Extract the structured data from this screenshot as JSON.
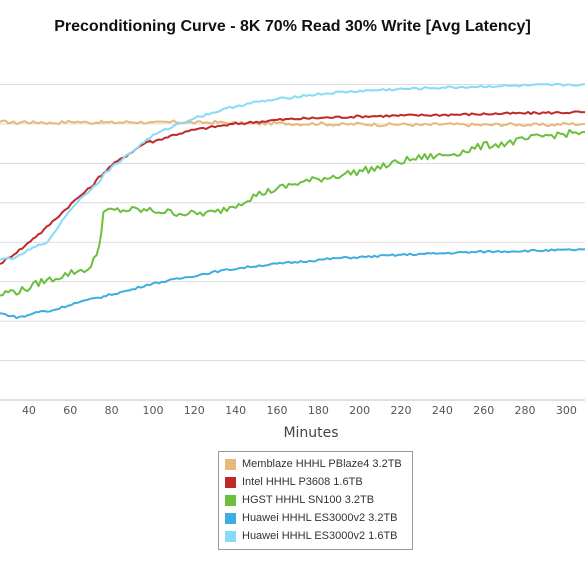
{
  "chart_data": {
    "type": "line",
    "title": "Preconditioning Curve - 8K 70% Read 30% Write [Avg Latency]",
    "xlabel": "Minutes",
    "ylabel": "",
    "x_ticks": [
      40,
      60,
      80,
      100,
      120,
      140,
      160,
      180,
      200,
      220,
      240,
      260,
      280,
      300
    ],
    "xlim": [
      26,
      309
    ],
    "ylim": [
      0,
      9
    ],
    "y_gridlines": [
      1,
      2,
      3,
      4,
      5,
      6,
      7,
      8
    ],
    "grid": true,
    "legend_position": "bottom",
    "x": [
      26,
      30,
      34,
      38,
      42,
      46,
      50,
      56,
      62,
      70,
      74,
      76,
      80,
      90,
      97,
      100,
      110,
      120,
      130,
      140,
      150,
      160,
      170,
      180,
      190,
      200,
      210,
      220,
      230,
      240,
      250,
      260,
      270,
      280,
      290,
      300,
      309
    ],
    "series": [
      {
        "name": "Memblaze HHHL PBlaze4 3.2TB",
        "color": "#e8b87a",
        "values": [
          7.05,
          7.05,
          7.02,
          7.06,
          7.03,
          7.05,
          7.02,
          7.04,
          7.06,
          7.03,
          7.05,
          7.04,
          7.03,
          7.05,
          7.04,
          7.02,
          7.05,
          7.03,
          7.04,
          7.02,
          7.0,
          7.02,
          7.0,
          7.01,
          6.98,
          7.0,
          6.98,
          6.99,
          6.97,
          6.99,
          6.98,
          6.97,
          6.99,
          6.98,
          6.97,
          7.0,
          7.0
        ]
      },
      {
        "name": "Intel HHHL P3608 1.6TB",
        "color": "#c0282a",
        "values": [
          3.45,
          3.6,
          3.75,
          3.9,
          4.1,
          4.25,
          4.45,
          4.75,
          5.05,
          5.4,
          5.65,
          5.75,
          5.95,
          6.3,
          6.55,
          6.55,
          6.72,
          6.85,
          6.93,
          7.0,
          7.05,
          7.1,
          7.13,
          7.15,
          7.17,
          7.19,
          7.2,
          7.21,
          7.22,
          7.23,
          7.24,
          7.25,
          7.26,
          7.27,
          7.28,
          7.29,
          7.3
        ]
      },
      {
        "name": "HGST HHHL SN100 3.2TB",
        "color": "#6cbf3c",
        "values": [
          2.65,
          2.75,
          2.75,
          2.8,
          2.9,
          3.0,
          3.05,
          3.15,
          3.25,
          3.35,
          3.9,
          4.75,
          4.8,
          4.82,
          4.8,
          4.8,
          4.75,
          4.72,
          4.75,
          4.95,
          5.2,
          5.35,
          5.5,
          5.6,
          5.7,
          5.8,
          5.9,
          6.05,
          6.15,
          6.2,
          6.3,
          6.45,
          6.5,
          6.6,
          6.7,
          6.75,
          6.8
        ]
      },
      {
        "name": "Huawei HHHL ES3000v2 3.2TB",
        "color": "#3eaee0",
        "values": [
          2.2,
          2.15,
          2.1,
          2.12,
          2.2,
          2.25,
          2.25,
          2.35,
          2.45,
          2.55,
          2.6,
          2.62,
          2.68,
          2.8,
          2.92,
          2.95,
          3.05,
          3.15,
          3.25,
          3.33,
          3.4,
          3.45,
          3.5,
          3.55,
          3.6,
          3.62,
          3.65,
          3.68,
          3.7,
          3.72,
          3.74,
          3.76,
          3.77,
          3.78,
          3.79,
          3.8,
          3.82
        ]
      },
      {
        "name": "Huawei HHHL ES3000v2 1.6TB",
        "color": "#86dbf5",
        "values": [
          3.55,
          3.6,
          3.6,
          3.75,
          3.85,
          3.95,
          4.05,
          4.55,
          4.95,
          5.35,
          5.55,
          5.7,
          5.9,
          6.3,
          6.6,
          6.7,
          6.95,
          7.15,
          7.3,
          7.45,
          7.55,
          7.62,
          7.7,
          7.75,
          7.8,
          7.83,
          7.86,
          7.88,
          7.9,
          7.92,
          7.93,
          7.95,
          7.96,
          7.97,
          7.98,
          7.99,
          8.0
        ]
      }
    ]
  }
}
